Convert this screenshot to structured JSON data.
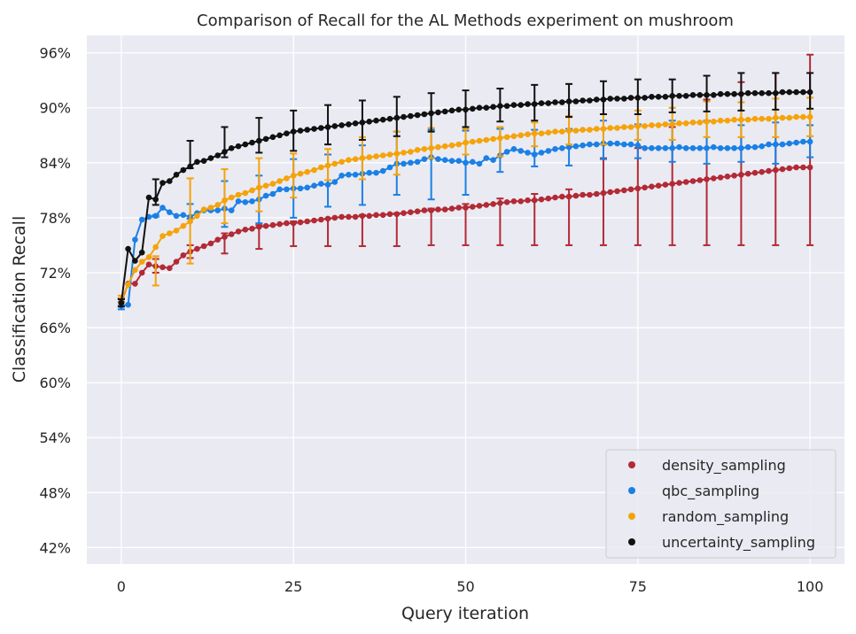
{
  "chart_data": {
    "type": "line",
    "title": "Comparison of Recall for the AL Methods experiment on mushroom",
    "xlabel": "Query iteration",
    "ylabel": "Classification Recall",
    "xlim": [
      -5,
      105
    ],
    "ylim": [
      40.2,
      97.9
    ],
    "x_ticks": [
      0,
      25,
      50,
      75,
      100
    ],
    "y_ticks": [
      42,
      48,
      54,
      60,
      66,
      72,
      78,
      84,
      90,
      96
    ],
    "y_tick_format": "percent",
    "grid": true,
    "legend_position": "lower-right",
    "x": [
      0,
      1,
      2,
      3,
      4,
      5,
      6,
      7,
      8,
      9,
      10,
      11,
      12,
      13,
      14,
      15,
      16,
      17,
      18,
      19,
      20,
      21,
      22,
      23,
      24,
      25,
      26,
      27,
      28,
      29,
      30,
      31,
      32,
      33,
      34,
      35,
      36,
      37,
      38,
      39,
      40,
      41,
      42,
      43,
      44,
      45,
      46,
      47,
      48,
      49,
      50,
      51,
      52,
      53,
      54,
      55,
      56,
      57,
      58,
      59,
      60,
      61,
      62,
      63,
      64,
      65,
      66,
      67,
      68,
      69,
      70,
      71,
      72,
      73,
      74,
      75,
      76,
      77,
      78,
      79,
      80,
      81,
      82,
      83,
      84,
      85,
      86,
      87,
      88,
      89,
      90,
      91,
      92,
      93,
      94,
      95,
      96,
      97,
      98,
      99,
      100
    ],
    "series": [
      {
        "name": "density_sampling",
        "color": "#b22a35",
        "values": [
          68.8,
          70.8,
          70.8,
          72,
          72.9,
          72.7,
          72.6,
          72.5,
          73.2,
          73.9,
          74.3,
          74.6,
          74.9,
          75.2,
          75.6,
          75.9,
          76.2,
          76.5,
          76.7,
          76.8,
          77,
          77.1,
          77.2,
          77.3,
          77.4,
          77.4,
          77.5,
          77.6,
          77.7,
          77.8,
          77.9,
          78,
          78.1,
          78.1,
          78.1,
          78.2,
          78.2,
          78.3,
          78.3,
          78.4,
          78.4,
          78.5,
          78.6,
          78.7,
          78.8,
          78.8,
          78.9,
          78.9,
          79,
          79.1,
          79.1,
          79.2,
          79.3,
          79.4,
          79.5,
          79.6,
          79.7,
          79.8,
          79.8,
          79.9,
          79.9,
          80,
          80.1,
          80.2,
          80.3,
          80.3,
          80.4,
          80.5,
          80.5,
          80.6,
          80.7,
          80.8,
          80.9,
          81,
          81.1,
          81.2,
          81.3,
          81.4,
          81.5,
          81.6,
          81.7,
          81.8,
          81.9,
          82,
          82.1,
          82.2,
          82.3,
          82.4,
          82.5,
          82.6,
          82.7,
          82.8,
          82.9,
          83,
          83.1,
          83.2,
          83.3,
          83.4,
          83.5,
          83.5,
          83.5
        ],
        "error_at": [
          0,
          5,
          10,
          15,
          20,
          25,
          30,
          35,
          40,
          45,
          50,
          55,
          60,
          65,
          70,
          75,
          80,
          85,
          90,
          95,
          100
        ],
        "error_low": [
          68.4,
          72.0,
          73.6,
          74.1,
          74.6,
          74.9,
          74.9,
          74.9,
          74.9,
          75,
          75,
          75,
          75,
          75,
          75,
          75,
          75,
          75,
          75,
          75,
          75
        ],
        "error_high": [
          69.2,
          73.5,
          75.0,
          76.3,
          77.2,
          77.6,
          77.9,
          78.3,
          78.5,
          79.0,
          79.5,
          80.1,
          80.6,
          81.1,
          84.5,
          85.6,
          87.9,
          90.9,
          92.8,
          93.8,
          95.8
        ]
      },
      {
        "name": "qbc_sampling",
        "color": "#1a80e6",
        "values": [
          68.4,
          68.5,
          75.6,
          77.8,
          78.1,
          78.2,
          79.1,
          78.6,
          78.2,
          78.3,
          78.1,
          78.5,
          78.8,
          78.8,
          78.8,
          79,
          78.8,
          79.8,
          79.7,
          79.8,
          80,
          80.4,
          80.6,
          81.1,
          81.1,
          81.2,
          81.2,
          81.3,
          81.5,
          81.7,
          81.6,
          81.9,
          82.6,
          82.7,
          82.7,
          82.8,
          82.9,
          82.9,
          83.1,
          83.5,
          83.9,
          83.9,
          84,
          84.1,
          84.4,
          84.6,
          84.4,
          84.3,
          84.2,
          84.2,
          84,
          84.1,
          83.9,
          84.5,
          84.3,
          84.8,
          85.2,
          85.5,
          85.3,
          85.1,
          84.9,
          85.1,
          85.3,
          85.5,
          85.6,
          85.7,
          85.8,
          85.9,
          86,
          86,
          86.1,
          86.1,
          86.1,
          86,
          86,
          85.9,
          85.6,
          85.6,
          85.6,
          85.6,
          85.6,
          85.7,
          85.6,
          85.6,
          85.6,
          85.6,
          85.7,
          85.6,
          85.6,
          85.6,
          85.6,
          85.7,
          85.7,
          85.8,
          86,
          86,
          86,
          86.1,
          86.2,
          86.3,
          86.3
        ],
        "error_at": [
          0,
          5,
          10,
          15,
          20,
          25,
          30,
          35,
          40,
          45,
          50,
          55,
          60,
          65,
          70,
          75,
          80,
          85,
          90,
          95,
          100
        ],
        "error_low": [
          68.0,
          78.1,
          77.9,
          77.0,
          77.4,
          78.0,
          79.2,
          79.4,
          80.5,
          80.0,
          80.5,
          83.0,
          83.6,
          83.7,
          84.4,
          84.5,
          84.1,
          83.9,
          84.1,
          83.9,
          84.6
        ],
        "error_high": [
          68.8,
          78.3,
          79.5,
          82.0,
          82.6,
          84.4,
          84.9,
          85.9,
          87.4,
          87.6,
          87.5,
          87.7,
          87.6,
          87.7,
          88.6,
          88.2,
          88.6,
          88.6,
          88.1,
          88.4,
          88.1
        ]
      },
      {
        "name": "random_sampling",
        "color": "#f5a30a",
        "values": [
          69.1,
          70.7,
          72.3,
          73.2,
          73.7,
          74.8,
          76,
          76.3,
          76.6,
          77.1,
          77.6,
          78.2,
          78.9,
          79.1,
          79.4,
          79.9,
          80.2,
          80.5,
          80.7,
          81,
          81.3,
          81.5,
          81.7,
          82,
          82.3,
          82.6,
          82.8,
          83,
          83.2,
          83.5,
          83.7,
          83.9,
          84.1,
          84.3,
          84.4,
          84.5,
          84.6,
          84.7,
          84.8,
          84.9,
          85,
          85.1,
          85.2,
          85.4,
          85.5,
          85.6,
          85.7,
          85.8,
          85.9,
          86,
          86.2,
          86.3,
          86.4,
          86.5,
          86.6,
          86.7,
          86.8,
          86.9,
          87,
          87.1,
          87.2,
          87.2,
          87.3,
          87.4,
          87.4,
          87.5,
          87.5,
          87.6,
          87.6,
          87.7,
          87.7,
          87.8,
          87.8,
          87.9,
          87.9,
          88,
          88,
          88.1,
          88.1,
          88.2,
          88.2,
          88.3,
          88.3,
          88.4,
          88.4,
          88.5,
          88.5,
          88.6,
          88.6,
          88.7,
          88.7,
          88.7,
          88.8,
          88.8,
          88.8,
          88.9,
          88.9,
          88.9,
          89,
          89,
          89
        ],
        "error_at": [
          0,
          5,
          10,
          15,
          20,
          25,
          30,
          35,
          40,
          45,
          50,
          55,
          60,
          65,
          70,
          75,
          80,
          85,
          90,
          95,
          100
        ],
        "error_low": [
          68.7,
          70.6,
          73.0,
          77.4,
          78.7,
          80.2,
          82.1,
          82.2,
          82.7,
          84.5,
          84.9,
          84.7,
          85.8,
          86.0,
          86.0,
          86.5,
          86.5,
          86.8,
          86.8,
          86.8,
          86.9
        ],
        "error_high": [
          69.5,
          73.8,
          82.3,
          83.3,
          84.5,
          85.0,
          85.5,
          86.8,
          87.4,
          87.8,
          87.7,
          87.9,
          88.4,
          89.1,
          89.3,
          89.7,
          90.0,
          90.7,
          90.6,
          91.0,
          91.1
        ]
      },
      {
        "name": "uncertainty_sampling",
        "color": "#111111",
        "values": [
          68.7,
          74.6,
          73.3,
          74.2,
          80.2,
          80,
          81.8,
          82,
          82.7,
          83.2,
          83.6,
          84.1,
          84.2,
          84.5,
          84.8,
          85.2,
          85.6,
          85.8,
          86,
          86.2,
          86.4,
          86.6,
          86.8,
          87,
          87.2,
          87.4,
          87.5,
          87.6,
          87.7,
          87.8,
          87.9,
          88,
          88.1,
          88.2,
          88.3,
          88.4,
          88.5,
          88.6,
          88.7,
          88.8,
          88.9,
          89,
          89.1,
          89.2,
          89.3,
          89.4,
          89.5,
          89.6,
          89.7,
          89.8,
          89.8,
          89.9,
          90,
          90,
          90.1,
          90.2,
          90.2,
          90.3,
          90.3,
          90.4,
          90.4,
          90.5,
          90.5,
          90.6,
          90.6,
          90.7,
          90.7,
          90.8,
          90.8,
          90.9,
          90.9,
          91,
          91,
          91,
          91.1,
          91.1,
          91.1,
          91.2,
          91.2,
          91.2,
          91.3,
          91.3,
          91.3,
          91.4,
          91.4,
          91.4,
          91.4,
          91.5,
          91.5,
          91.5,
          91.5,
          91.6,
          91.6,
          91.6,
          91.6,
          91.6,
          91.7,
          91.7,
          91.7,
          91.7,
          91.7
        ],
        "error_at": [
          0,
          5,
          10,
          15,
          20,
          25,
          30,
          35,
          40,
          45,
          50,
          55,
          60,
          65,
          70,
          75,
          80,
          85,
          90,
          95,
          100
        ],
        "error_low": [
          68.3,
          79.4,
          83.4,
          84.6,
          85.1,
          85.3,
          86.0,
          86.5,
          86.9,
          87.4,
          87.9,
          88.5,
          88.6,
          89.0,
          89.3,
          89.3,
          89.5,
          89.6,
          89.7,
          89.8,
          89.9
        ],
        "error_high": [
          69.1,
          82.2,
          86.4,
          87.9,
          88.9,
          89.7,
          90.3,
          90.8,
          91.2,
          91.6,
          91.9,
          92.1,
          92.5,
          92.6,
          92.9,
          93.1,
          93.1,
          93.5,
          93.8,
          93.8,
          93.8
        ]
      }
    ]
  }
}
